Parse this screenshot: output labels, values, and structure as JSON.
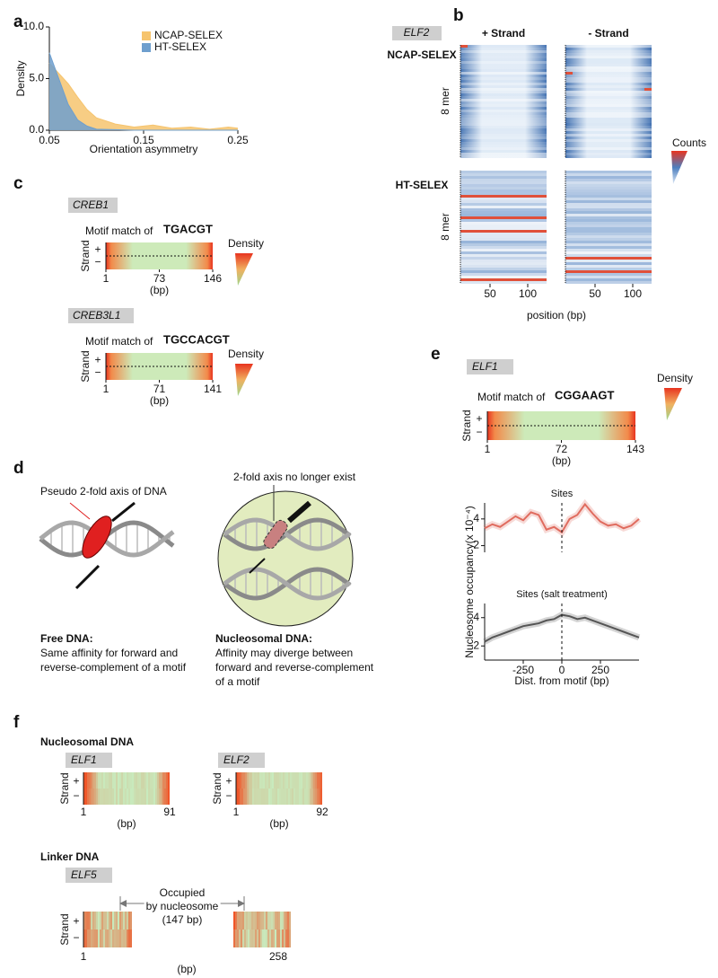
{
  "chart_data": [
    {
      "type": "area",
      "letter": "a",
      "x": [
        0.05,
        0.06,
        0.07,
        0.08,
        0.09,
        0.1,
        0.12,
        0.14,
        0.16,
        0.18,
        0.2,
        0.22,
        0.24,
        0.25
      ],
      "series": [
        {
          "name": "NCAP-SELEX",
          "color": "#f6c46e",
          "values": [
            6.5,
            5.5,
            4.5,
            3.2,
            2.0,
            1.2,
            0.6,
            0.3,
            0.5,
            0.2,
            0.3,
            0.1,
            0.3,
            0.2
          ]
        },
        {
          "name": "HT-SELEX",
          "color": "#6e9fce",
          "values": [
            7.5,
            5.0,
            2.5,
            1.0,
            0.4,
            0.1,
            0.05,
            0,
            0,
            0,
            0,
            0,
            0,
            0
          ]
        }
      ],
      "xlim": [
        0.05,
        0.25
      ],
      "ylim": [
        0,
        10
      ],
      "xticks": [
        0.05,
        0.15,
        0.25
      ],
      "yticks": [
        {
          "value": 0,
          "label": "0.0"
        },
        {
          "value": 5,
          "label": "5.0"
        },
        {
          "value": 10,
          "label": "10.0"
        }
      ],
      "xlabel": "Orientation asymmetry",
      "ylabel": "Density"
    },
    {
      "type": "line",
      "title": "Sites",
      "x": [
        -500,
        -450,
        -400,
        -350,
        -300,
        -250,
        -200,
        -150,
        -100,
        -50,
        0,
        50,
        100,
        150,
        200,
        250,
        300,
        350,
        400,
        450,
        500
      ],
      "series": [
        {
          "color": "#e06c5f",
          "values": [
            3.3,
            3.6,
            3.4,
            3.8,
            4.2,
            3.9,
            4.5,
            4.3,
            3.2,
            3.4,
            3.0,
            4.0,
            4.3,
            5.1,
            4.4,
            3.8,
            3.5,
            3.6,
            3.3,
            3.5,
            4.0
          ]
        }
      ],
      "xlim": [
        -500,
        500
      ],
      "ylim": [
        1.5,
        5.2
      ],
      "yticks": [
        2,
        4
      ],
      "vline": 0
    },
    {
      "type": "line",
      "title": "Sites (salt treatment)",
      "x": [
        -500,
        -450,
        -400,
        -350,
        -300,
        -250,
        -200,
        -150,
        -100,
        -50,
        0,
        50,
        100,
        150,
        200,
        250,
        300,
        350,
        400,
        450,
        500
      ],
      "series": [
        {
          "color": "#555555",
          "values": [
            2.3,
            2.6,
            2.8,
            3.0,
            3.2,
            3.4,
            3.5,
            3.6,
            3.8,
            3.9,
            4.2,
            4.1,
            3.9,
            4.0,
            3.8,
            3.6,
            3.4,
            3.2,
            3.0,
            2.8,
            2.6
          ]
        }
      ],
      "xlim": [
        -500,
        500
      ],
      "ylim": [
        1,
        5
      ],
      "xticks": [
        -250,
        0,
        250
      ],
      "yticks": [
        2,
        4
      ],
      "vline": 0,
      "xlabel": "Dist. from motif (bp)"
    }
  ],
  "strand": {
    "title": "Strand",
    "plus": "+",
    "minus": "−"
  },
  "bp": "(bp)",
  "density": "Density",
  "panels": {
    "b": {
      "letter": "b",
      "gene": "ELF2",
      "columns": [
        "+ Strand",
        "- Strand"
      ],
      "rows": [
        "NCAP-SELEX",
        "HT-SELEX"
      ],
      "row_axis": "8 mer",
      "legend": "Counts",
      "xticks": [
        50,
        100
      ],
      "xlabel": "position (bp)"
    },
    "c": {
      "letter": "c",
      "motif_prefix": "Motif match of",
      "motifs": [
        {
          "gene": "CREB1",
          "logo": "TGACGT",
          "ticks": [
            1,
            73,
            146
          ]
        },
        {
          "gene": "CREB3L1",
          "logo": "TGCCACGT",
          "ticks": [
            1,
            71,
            141
          ]
        }
      ]
    },
    "d": {
      "letter": "d",
      "free": {
        "annotation": "Pseudo 2-fold axis of DNA",
        "title": "Free DNA:",
        "lines": [
          "Same affinity for forward and",
          "reverse-complement of a motif"
        ]
      },
      "nucleosomal": {
        "annotation": "2-fold axis no longer exist",
        "title": "Nucleosomal DNA:",
        "lines": [
          "Affinity may diverge between",
          "forward and reverse-complement",
          "of a motif"
        ]
      }
    },
    "e": {
      "letter": "e",
      "gene": "ELF1",
      "motif_prefix": "Motif match of",
      "logo": "CGGAAGT",
      "ticks": [
        1,
        72,
        143
      ],
      "ylabel": "Nucleosome occupancy(x 10⁻⁴)"
    },
    "f": {
      "letter": "f",
      "nucleosomal": {
        "title": "Nucleosomal DNA",
        "maps": [
          {
            "gene": "ELF1",
            "ticks": [
              1,
              91
            ]
          },
          {
            "gene": "ELF2",
            "ticks": [
              1,
              92
            ]
          }
        ]
      },
      "linker": {
        "title": "Linker DNA",
        "gene": "ELF5",
        "ticks": [
          1,
          258
        ],
        "annotation": [
          "Occupied",
          "by nucleosome",
          "(147 bp)"
        ]
      }
    }
  }
}
